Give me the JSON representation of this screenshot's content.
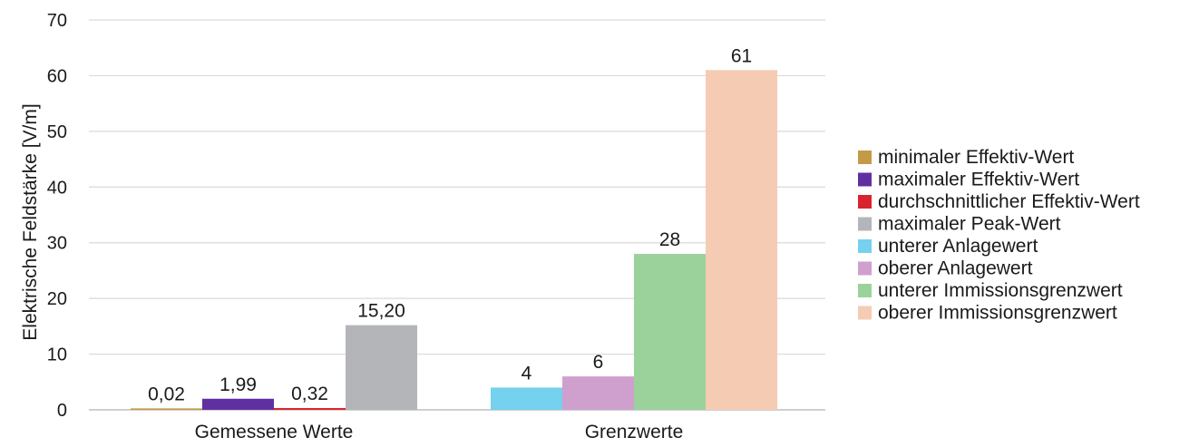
{
  "chart_data": {
    "type": "bar",
    "title": "",
    "ylabel": "Elektrische Feldstärke [V/m]",
    "xlabel": "",
    "ylim": [
      0,
      70
    ],
    "yticks": [
      0,
      10,
      20,
      30,
      40,
      50,
      60,
      70
    ],
    "grid": true,
    "legend_position": "right",
    "groups": [
      {
        "category": "Gemessene Werte",
        "bars": [
          {
            "series": "minimaler Effektiv-Wert",
            "value": 0.02,
            "label": "0,02"
          },
          {
            "series": "maximaler Effektiv-Wert",
            "value": 1.99,
            "label": "1,99"
          },
          {
            "series": "durchschnittlicher Effektiv-Wert",
            "value": 0.32,
            "label": "0,32"
          },
          {
            "series": "maximaler Peak-Wert",
            "value": 15.2,
            "label": "15,20"
          }
        ]
      },
      {
        "category": "Grenzwerte",
        "bars": [
          {
            "series": "unterer Anlagewert",
            "value": 4,
            "label": "4"
          },
          {
            "series": "oberer Anlagewert",
            "value": 6,
            "label": "6"
          },
          {
            "series": "unterer Immissionsgrenzwert",
            "value": 28,
            "label": "28"
          },
          {
            "series": "oberer Immissionsgrenzwert",
            "value": 61,
            "label": "61"
          }
        ]
      }
    ],
    "series": [
      {
        "name": "minimaler Effektiv-Wert",
        "color": "#c49a45"
      },
      {
        "name": "maximaler Effektiv-Wert",
        "color": "#6130a0"
      },
      {
        "name": "durchschnittlicher Effektiv-Wert",
        "color": "#d9232d"
      },
      {
        "name": "maximaler Peak-Wert",
        "color": "#b4b5b8"
      },
      {
        "name": "unterer Anlagewert",
        "color": "#75d1ee"
      },
      {
        "name": "oberer Anlagewert",
        "color": "#cfa0ce"
      },
      {
        "name": "unterer Immissionsgrenzwert",
        "color": "#9bd29c"
      },
      {
        "name": "oberer Immissionsgrenzwert",
        "color": "#f6cbb4"
      }
    ]
  }
}
